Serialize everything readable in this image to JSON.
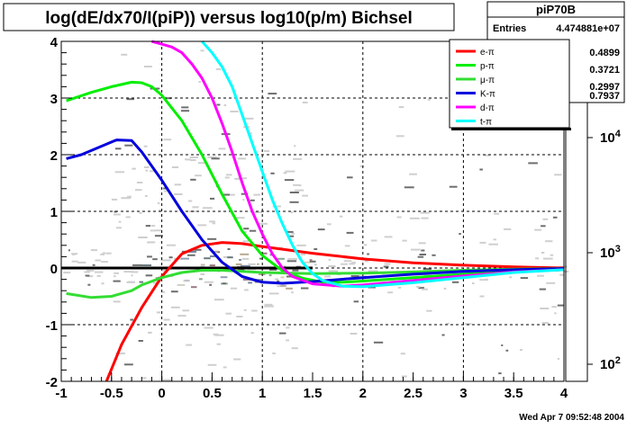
{
  "title": "log(dE/dx70/I(piP)) versus log10(p/m) Bichsel",
  "footer_timestamp": "Wed Apr  7 09:52:48 2004",
  "stats_box": {
    "name": "piP70B",
    "rows": [
      {
        "label": "Entries",
        "value": "4.474881e+07"
      },
      {
        "label": "",
        "value": "0.4899"
      },
      {
        "label": "",
        "value": "0.3721"
      },
      {
        "label": "",
        "value": "0.2997"
      },
      {
        "label": "",
        "value": "0.7937"
      }
    ]
  },
  "colors": {
    "e": "#ff0000",
    "p": "#00ee00",
    "mu": "#33dd33",
    "K": "#0000dd",
    "d": "#ff00ff",
    "t": "#00ffff",
    "zero_line": "#000000",
    "frame": "#000000",
    "palette": [
      "#cfcfcf",
      "#4a4a4a",
      "#6e6e6e",
      "#d8d0b0",
      "#b8a8a0",
      "#806060",
      "#8aa890",
      "#6b7b80",
      "#90a0b8",
      "#7888a0",
      "#b8a890",
      "#9a7a80"
    ]
  },
  "chart_data": {
    "type": "heatmap",
    "title": "log(dE/dx70/I(piP)) versus log10(p/m) Bichsel",
    "xlabel": "",
    "ylabel": "",
    "xlim": [
      -1,
      4
    ],
    "ylim": [
      -2,
      4
    ],
    "x_ticks": [
      "-1",
      "-0.5",
      "0",
      "0.5",
      "1",
      "1.5",
      "2",
      "2.5",
      "3",
      "3.5",
      "4"
    ],
    "y_ticks": [
      "-2",
      "-1",
      "0",
      "1",
      "2",
      "3",
      "4"
    ],
    "grid": true,
    "z_scale": "log",
    "z_ticks": [
      "10^2",
      "10^3",
      "10^4"
    ],
    "legend": {
      "placement": "top-right",
      "entries": [
        "e-π",
        "p-π",
        "μ-π",
        "K-π",
        "d-π",
        "t-π"
      ]
    },
    "series": [
      {
        "name": "e-π",
        "color": "#ff0000",
        "x": [
          -0.55,
          -0.4,
          -0.2,
          0.0,
          0.2,
          0.4,
          0.6,
          0.8,
          1.0,
          1.5,
          2.0,
          2.5,
          3.0,
          3.5,
          4.0
        ],
        "y": [
          -2.0,
          -1.35,
          -0.7,
          -0.15,
          0.25,
          0.4,
          0.45,
          0.43,
          0.38,
          0.26,
          0.16,
          0.09,
          0.05,
          0.02,
          0.0
        ]
      },
      {
        "name": "p-π",
        "color": "#00ee00",
        "x": [
          -0.95,
          -0.7,
          -0.5,
          -0.3,
          -0.2,
          -0.1,
          0.0,
          0.2,
          0.4,
          0.6,
          0.8,
          1.0,
          1.2,
          1.4,
          1.6,
          1.8,
          2.0,
          2.5,
          3.0,
          3.5,
          4.0
        ],
        "y": [
          2.95,
          3.1,
          3.2,
          3.28,
          3.27,
          3.2,
          3.05,
          2.6,
          2.0,
          1.3,
          0.65,
          0.22,
          -0.05,
          -0.18,
          -0.25,
          -0.25,
          -0.23,
          -0.17,
          -0.11,
          -0.06,
          -0.03
        ]
      },
      {
        "name": "μ-π",
        "color": "#33dd33",
        "x": [
          -0.95,
          -0.7,
          -0.5,
          -0.3,
          -0.2,
          0.0,
          0.2,
          0.4,
          0.6,
          0.8,
          1.0,
          1.5,
          2.0,
          2.5,
          3.0,
          3.5,
          4.0
        ],
        "y": [
          -0.45,
          -0.52,
          -0.5,
          -0.4,
          -0.3,
          -0.17,
          -0.08,
          -0.04,
          -0.04,
          -0.06,
          -0.08,
          -0.1,
          -0.09,
          -0.07,
          -0.04,
          -0.02,
          -0.01
        ]
      },
      {
        "name": "K-π",
        "color": "#0000dd",
        "x": [
          -0.95,
          -0.8,
          -0.6,
          -0.45,
          -0.3,
          -0.2,
          0.0,
          0.2,
          0.4,
          0.6,
          0.8,
          1.0,
          1.2,
          1.5,
          2.0,
          2.5,
          3.0,
          3.5,
          4.0
        ],
        "y": [
          1.93,
          2.0,
          2.15,
          2.26,
          2.25,
          2.05,
          1.55,
          1.0,
          0.5,
          0.1,
          -0.15,
          -0.25,
          -0.27,
          -0.24,
          -0.17,
          -0.11,
          -0.06,
          -0.03,
          -0.01
        ]
      },
      {
        "name": "d-π",
        "color": "#ff00ff",
        "x": [
          -0.1,
          0.0,
          0.1,
          0.2,
          0.3,
          0.4,
          0.5,
          0.6,
          0.7,
          0.8,
          0.9,
          1.0,
          1.1,
          1.2,
          1.3,
          1.5,
          1.8,
          2.0,
          2.5,
          3.0,
          3.5,
          4.0
        ],
        "y": [
          4.0,
          3.95,
          3.9,
          3.8,
          3.6,
          3.35,
          3.0,
          2.55,
          2.05,
          1.5,
          1.0,
          0.6,
          0.25,
          0.0,
          -0.15,
          -0.28,
          -0.32,
          -0.3,
          -0.22,
          -0.14,
          -0.07,
          -0.03
        ]
      },
      {
        "name": "t-π",
        "color": "#00ffff",
        "x": [
          0.4,
          0.5,
          0.6,
          0.7,
          0.8,
          0.9,
          1.0,
          1.1,
          1.2,
          1.3,
          1.4,
          1.5,
          1.6,
          1.8,
          2.0,
          2.5,
          3.0,
          3.5,
          4.0
        ],
        "y": [
          4.0,
          3.8,
          3.55,
          3.2,
          2.7,
          2.2,
          1.7,
          1.2,
          0.78,
          0.4,
          0.1,
          -0.1,
          -0.22,
          -0.32,
          -0.33,
          -0.26,
          -0.17,
          -0.08,
          -0.03
        ]
      }
    ],
    "reference_line": {
      "y": 0,
      "x_from": -1,
      "x_to": 1.5
    }
  }
}
